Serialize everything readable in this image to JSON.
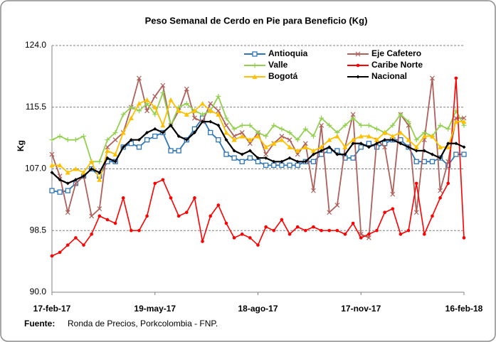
{
  "chart_data": {
    "type": "line",
    "title": "Peso Semanal de Cerdo en Pie para Beneficio (Kg)",
    "y_label": "Kg",
    "source_label": "Fuente:",
    "source_text": "Ronda de Precios, Porkcolombia - FNP.",
    "categories": [
      "17-feb-17",
      null,
      null,
      null,
      null,
      null,
      null,
      null,
      null,
      null,
      null,
      null,
      null,
      "19-may-17",
      null,
      null,
      null,
      null,
      null,
      null,
      null,
      null,
      null,
      null,
      null,
      null,
      "18-ago-17",
      null,
      null,
      null,
      null,
      null,
      null,
      null,
      null,
      null,
      null,
      null,
      null,
      "17-nov-17",
      null,
      null,
      null,
      null,
      null,
      null,
      null,
      null,
      null,
      null,
      null,
      null,
      "16-feb-18"
    ],
    "ylim": [
      90,
      124
    ],
    "yticks": [
      {
        "value": 90,
        "label": "90.0"
      },
      {
        "value": 98.5,
        "label": "98.5"
      },
      {
        "value": 107,
        "label": "107.0"
      },
      {
        "value": 115.5,
        "label": "115.5"
      },
      {
        "value": 124,
        "label": "124.0"
      }
    ],
    "grid": true,
    "legend": "top-right",
    "series": [
      {
        "name": "Antioquia",
        "color": "#2e75b6",
        "marker": "square",
        "values": [
          104,
          103.8,
          104,
          105,
          106,
          107,
          106,
          108,
          108,
          110,
          110.5,
          110,
          111,
          111.5,
          112,
          109.5,
          109.5,
          111,
          112.5,
          114,
          112,
          111,
          109,
          108.5,
          108,
          108.5,
          108,
          107.5,
          107.5,
          107.5,
          107.5,
          107.5,
          108,
          108,
          109,
          109.5,
          109.5,
          108.5,
          108.5,
          110,
          110.5,
          110,
          110.5,
          111,
          111,
          110,
          108,
          108,
          108,
          108.5,
          107.5,
          109,
          109
        ]
      },
      {
        "name": "Eje Cafetero",
        "color": "#b0605a",
        "marker": "x",
        "values": [
          109,
          106,
          101,
          105,
          106,
          100.5,
          101.5,
          110,
          111,
          112,
          115.5,
          119.5,
          115,
          117,
          118.5,
          113,
          115,
          118,
          114,
          113.5,
          116,
          115,
          113,
          111.5,
          112,
          110.5,
          112,
          109,
          110.5,
          111.5,
          111,
          109,
          110.5,
          104,
          113,
          101,
          102,
          110,
          114.5,
          98,
          97.5,
          111,
          110,
          103.5,
          114.5,
          113,
          101,
          111,
          119.5,
          104,
          108,
          114,
          114
        ]
      },
      {
        "name": "Valle",
        "color": "#92d050",
        "marker": "plus",
        "values": [
          111,
          111.5,
          111,
          111,
          111.5,
          108,
          108,
          111,
          112,
          114.5,
          115.5,
          115,
          116,
          114.5,
          117.5,
          113,
          115.5,
          116,
          115,
          114.5,
          115,
          117,
          114,
          112.5,
          113,
          113,
          112,
          111.5,
          113,
          112.5,
          112,
          111,
          112.5,
          111.5,
          114,
          113,
          112,
          113,
          114,
          113,
          113,
          112.5,
          112,
          113,
          114.5,
          113.5,
          111,
          112,
          111.5,
          113,
          112.5,
          115,
          113
        ]
      },
      {
        "name": "Caribe Norte",
        "color": "#ff0000",
        "marker": "circle",
        "values": [
          95,
          95.5,
          96.5,
          97.5,
          96.5,
          98,
          100.5,
          100,
          99.5,
          103,
          98.5,
          98.5,
          100.5,
          105,
          105.5,
          103,
          100.5,
          101,
          103,
          97,
          100.5,
          102,
          99.5,
          97.5,
          98,
          97.5,
          96.5,
          99,
          98.5,
          100,
          98,
          99,
          98.5,
          99,
          98.5,
          98.5,
          98.5,
          98,
          99.5,
          97.5,
          98,
          98.5,
          101,
          101.5,
          98,
          98.5,
          105,
          98,
          100.5,
          103,
          105,
          119.5,
          97.5
        ]
      },
      {
        "name": "Bogotá",
        "color": "#ffc000",
        "marker": "triangle",
        "values": [
          107.5,
          107.5,
          106.5,
          107,
          106.5,
          108,
          105.5,
          109.5,
          109,
          112,
          114,
          116,
          116.5,
          115.5,
          113,
          116.5,
          115,
          114.5,
          115,
          116,
          115,
          114.5,
          112,
          111,
          111.5,
          111,
          111.5,
          110,
          110.5,
          111,
          110,
          109.5,
          110,
          109.5,
          110,
          111,
          111.5,
          110,
          111,
          111.5,
          111.5,
          111,
          112,
          111.5,
          112,
          111,
          110,
          111.5,
          111.5,
          110,
          110,
          113.5,
          113.5
        ]
      },
      {
        "name": "Nacional",
        "color": "#000000",
        "marker": "dot",
        "values": [
          106.5,
          105.5,
          105,
          105.5,
          106,
          107,
          106.5,
          108.5,
          108,
          110,
          111,
          111,
          112,
          112.5,
          112,
          113,
          111.5,
          111,
          112,
          113.5,
          113.5,
          113,
          111,
          109.5,
          109,
          109.5,
          108.5,
          108.5,
          108,
          108,
          108.5,
          108,
          108,
          109,
          109.5,
          110,
          109,
          109,
          110.5,
          110.5,
          110,
          110.5,
          111,
          111,
          110.5,
          110,
          109.5,
          109.5,
          109,
          108.5,
          110.5,
          110.5,
          110
        ]
      }
    ]
  }
}
